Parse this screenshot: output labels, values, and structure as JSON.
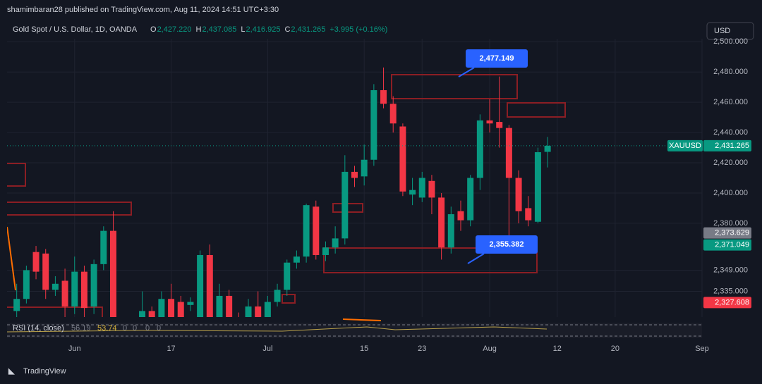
{
  "chart_data": {
    "type": "candlestick",
    "header": "shamimbaran28 published on TradingView.com, Aug 11, 2024 14:51 UTC+3:30",
    "title": "Gold Spot / U.S. Dollar, 1D, OANDA",
    "ohlc_legend": [
      {
        "key": "O",
        "value": "2,427.220"
      },
      {
        "key": "H",
        "value": "2,437.085"
      },
      {
        "key": "L",
        "value": "2,416.925"
      },
      {
        "key": "C",
        "value": "2,431.265"
      }
    ],
    "change": "+3.995 (+0.16%)",
    "currency": "USD",
    "up_color": "#089981",
    "down_color": "#f23645",
    "x": [
      0,
      1,
      2,
      3,
      4,
      5,
      6,
      7,
      8,
      9,
      10,
      11,
      12,
      13,
      14,
      15,
      16,
      17,
      18,
      19,
      20,
      21,
      22,
      23,
      24,
      25,
      26,
      27,
      28,
      29,
      30,
      31,
      32,
      33,
      34,
      35,
      36,
      37,
      38,
      39,
      40,
      41,
      42,
      43,
      44,
      45,
      46,
      47,
      48,
      49,
      50,
      51,
      52,
      53,
      54,
      55
    ],
    "open": [
      2322,
      2330,
      2361,
      2360,
      2336,
      2342,
      2325,
      2348,
      2325,
      2353,
      2375,
      2312,
      2305,
      2314,
      2322,
      2316,
      2330,
      2328,
      2326,
      2318,
      2359,
      2317,
      2332,
      2318,
      2318,
      2325,
      2316,
      2328,
      2336,
      2354,
      2358,
      2391,
      2359,
      2364,
      2370,
      2414,
      2411,
      2422,
      2468,
      2459,
      2444,
      2399,
      2397,
      2408,
      2397,
      2364,
      2388,
      2382,
      2410,
      2448,
      2447,
      2443,
      2410,
      2390,
      2381,
      2427.22
    ],
    "high": [
      2340,
      2352,
      2365,
      2363,
      2345,
      2350,
      2358,
      2352,
      2356,
      2378,
      2388,
      2316,
      2317,
      2335,
      2325,
      2335,
      2340,
      2332,
      2331,
      2362,
      2366,
      2340,
      2336,
      2321,
      2330,
      2335,
      2332,
      2340,
      2356,
      2362,
      2393,
      2395,
      2368,
      2378,
      2425,
      2418,
      2432,
      2472,
      2483,
      2464,
      2446,
      2410,
      2414,
      2412,
      2400,
      2391,
      2395,
      2412,
      2452,
      2462,
      2477,
      2445,
      2415,
      2398,
      2430,
      2437.085
    ],
    "low": [
      2318,
      2327,
      2343,
      2330,
      2332,
      2318,
      2320,
      2318,
      2320,
      2349,
      2305,
      2300,
      2298,
      2310,
      2312,
      2312,
      2312,
      2314,
      2322,
      2315,
      2312,
      2314,
      2314,
      2306,
      2314,
      2312,
      2314,
      2325,
      2332,
      2350,
      2354,
      2356,
      2355,
      2360,
      2366,
      2404,
      2405,
      2418,
      2456,
      2440,
      2398,
      2392,
      2394,
      2386,
      2356,
      2360,
      2375,
      2378,
      2402,
      2440,
      2430,
      2365,
      2380,
      2378,
      2380,
      2416.925
    ],
    "close": [
      2330,
      2349,
      2348,
      2336,
      2340,
      2325,
      2348,
      2324,
      2353,
      2375,
      2310,
      2305,
      2312,
      2322,
      2316,
      2330,
      2317,
      2318,
      2328,
      2359,
      2317,
      2332,
      2318,
      2312,
      2325,
      2316,
      2328,
      2336,
      2354,
      2358,
      2392,
      2359,
      2364,
      2370,
      2414,
      2410,
      2422,
      2468,
      2459,
      2446,
      2401,
      2402,
      2410,
      2397,
      2364,
      2386,
      2382,
      2410,
      2448,
      2446,
      2443,
      2410,
      2388,
      2382,
      2427,
      2431.265
    ],
    "xlim": [
      -1,
      71
    ],
    "xticks": [
      {
        "value": 6,
        "label": "Jun"
      },
      {
        "value": 16,
        "label": "17"
      },
      {
        "value": 26,
        "label": "Jul"
      },
      {
        "value": 36,
        "label": "15"
      },
      {
        "value": 42,
        "label": "23"
      },
      {
        "value": 49,
        "label": "Aug"
      },
      {
        "value": 56,
        "label": "12"
      },
      {
        "value": 62,
        "label": "20"
      },
      {
        "value": 71,
        "label": "Sep"
      }
    ],
    "ylim": [
      2318,
      2502
    ],
    "yticks": [
      {
        "value": 2500,
        "label": "2,500.000"
      },
      {
        "value": 2480,
        "label": "2,480.000"
      },
      {
        "value": 2460,
        "label": "2,460.000"
      },
      {
        "value": 2440,
        "label": "2,440.000"
      },
      {
        "value": 2420,
        "label": "2,420.000"
      },
      {
        "value": 2400,
        "label": "2,400.000"
      },
      {
        "value": 2380,
        "label": "2,380.000"
      },
      {
        "value": 2349,
        "label": "2,349.000"
      },
      {
        "value": 2335,
        "label": "2,335.000"
      }
    ],
    "grid": true,
    "price_labels": [
      {
        "symbol": "XAUUSD",
        "value": 2431.265,
        "value_label": "2,431.265",
        "color": "#089981"
      },
      {
        "value": 2373.629,
        "value_label": "2,373.629",
        "color": "#787b86"
      },
      {
        "value": 2371.049,
        "value_label": "2,371.049",
        "color": "#089981"
      },
      {
        "value": 2327.608,
        "value_label": "2,327.608",
        "color": "#f23645"
      }
    ],
    "annotations": [
      "2,477.149",
      "2,355.382"
    ],
    "rsi": {
      "label": "RSI (14, close)",
      "values": [
        "56.19",
        "53.74",
        "0",
        "0",
        "0",
        "0"
      ]
    },
    "footer": "TradingView"
  }
}
